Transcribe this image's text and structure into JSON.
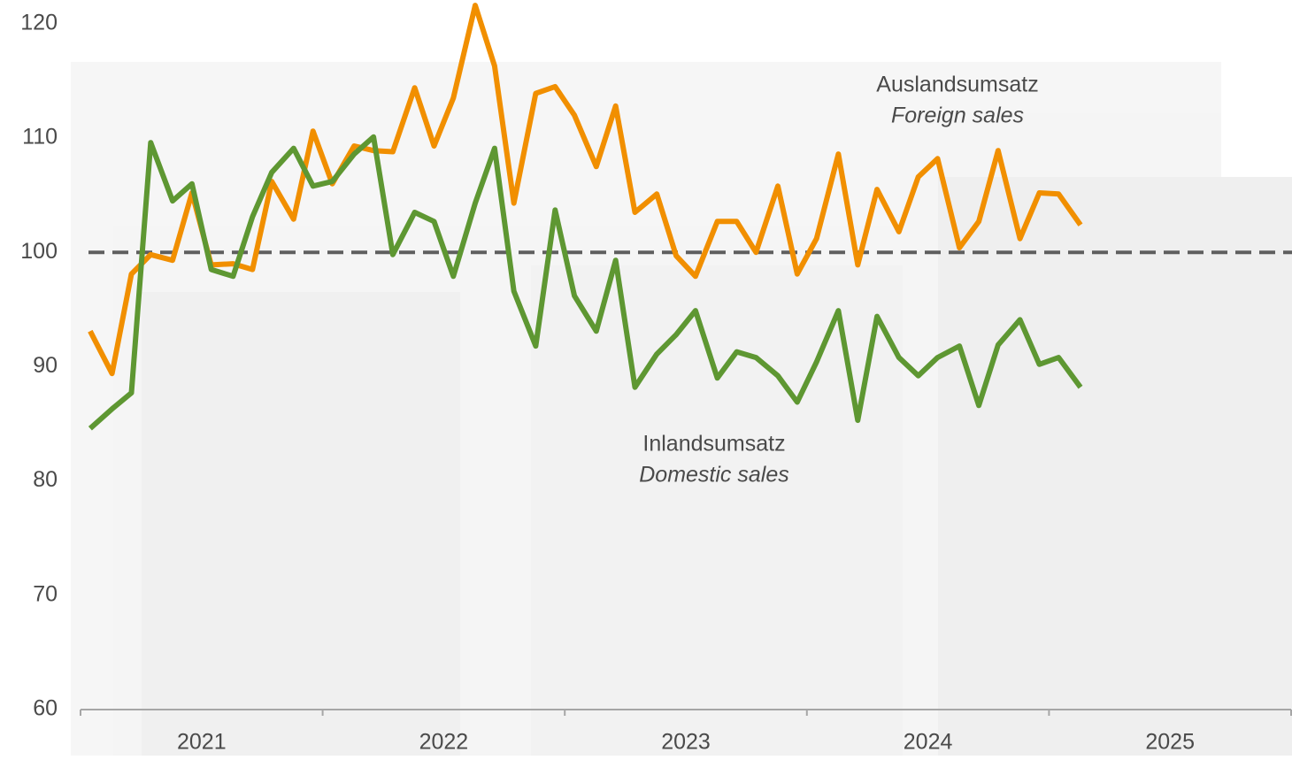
{
  "chart_data": {
    "type": "line",
    "x": [
      2021.04,
      2021.13,
      2021.21,
      2021.29,
      2021.38,
      2021.46,
      2021.54,
      2021.63,
      2021.71,
      2021.79,
      2021.88,
      2021.96,
      2022.04,
      2022.13,
      2022.21,
      2022.29,
      2022.38,
      2022.46,
      2022.54,
      2022.63,
      2022.71,
      2022.79,
      2022.88,
      2022.96,
      2023.04,
      2023.13,
      2023.21,
      2023.29,
      2023.38,
      2023.46,
      2023.54,
      2023.63,
      2023.71,
      2023.79,
      2023.88,
      2023.96,
      2024.04,
      2024.13,
      2024.21,
      2024.29,
      2024.38,
      2024.46,
      2024.54,
      2024.63,
      2024.71,
      2024.79,
      2024.88,
      2024.96,
      2025.04,
      2025.13
    ],
    "xlim": [
      2021,
      2026
    ],
    "xticks": [
      2021,
      2022,
      2023,
      2024,
      2025,
      2026
    ],
    "year_labels": [
      "2021",
      "2022",
      "2023",
      "2024",
      "2025"
    ],
    "ylim": [
      60,
      121.5
    ],
    "yticks": [
      60,
      70,
      80,
      90,
      100,
      110,
      120
    ],
    "reference_line": 100,
    "series": [
      {
        "name": "Auslandsumsatz",
        "name_en": "Foreign sales",
        "color": "#f18f00",
        "values": [
          93.1,
          89.4,
          98.1,
          99.8,
          99.3,
          105.2,
          98.9,
          99.0,
          98.5,
          106.2,
          102.9,
          110.6,
          106.0,
          109.3,
          108.9,
          108.8,
          114.4,
          109.3,
          113.5,
          121.6,
          116.3,
          104.3,
          113.9,
          114.5,
          112.0,
          107.5,
          112.8,
          103.5,
          105.1,
          99.7,
          97.9,
          102.7,
          102.7,
          100.0,
          105.8,
          98.1,
          101.2,
          108.6,
          98.9,
          105.5,
          101.8,
          106.6,
          108.2,
          100.4,
          102.7,
          108.9,
          101.2,
          105.2,
          105.1,
          102.4
        ]
      },
      {
        "name": "Inlandsumsatz",
        "name_en": "Domestic sales",
        "color": "#5e9732",
        "values": [
          84.6,
          86.3,
          87.7,
          109.6,
          104.5,
          106.0,
          98.5,
          97.9,
          103.1,
          107.0,
          109.1,
          105.8,
          106.2,
          108.6,
          110.1,
          99.8,
          103.5,
          102.7,
          97.9,
          104.3,
          109.1,
          96.6,
          91.8,
          103.7,
          96.2,
          93.1,
          99.3,
          88.2,
          91.1,
          92.8,
          94.9,
          89.0,
          91.3,
          90.8,
          89.2,
          86.9,
          90.4,
          94.9,
          85.3,
          94.4,
          90.8,
          89.2,
          90.8,
          91.8,
          86.6,
          91.9,
          94.1,
          90.2,
          90.8,
          88.2
        ]
      }
    ]
  }
}
